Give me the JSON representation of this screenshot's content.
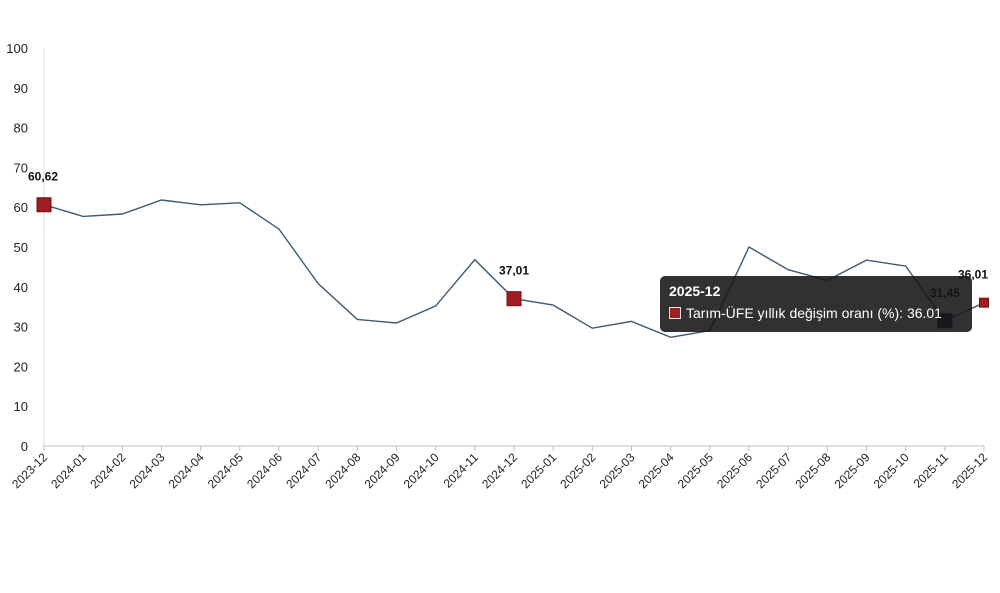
{
  "chart_data": {
    "type": "line",
    "categories": [
      "2023-12",
      "2024-01",
      "2024-02",
      "2024-03",
      "2024-04",
      "2024-05",
      "2024-06",
      "2024-07",
      "2024-08",
      "2024-09",
      "2024-10",
      "2024-11",
      "2024-12",
      "2025-01",
      "2025-02",
      "2025-03",
      "2025-04",
      "2025-05",
      "2025-06",
      "2025-07",
      "2025-08",
      "2025-09",
      "2025-10",
      "2025-11",
      "2025-12"
    ],
    "series": [
      {
        "name": "Tarım-ÜFE yıllık değişim oranı (%)",
        "values": [
          60.62,
          57.7,
          58.3,
          61.8,
          60.6,
          61.1,
          54.5,
          40.8,
          31.8,
          30.9,
          35.2,
          46.8,
          37.01,
          35.4,
          29.6,
          31.3,
          27.3,
          29.0,
          50.0,
          44.3,
          41.6,
          46.7,
          45.2,
          31.45,
          36.01
        ],
        "color": "#3d5a73",
        "marker_color": "#a01d22"
      }
    ],
    "ylim": [
      0,
      100
    ],
    "yticks": [
      "0",
      "10",
      "20",
      "30",
      "40",
      "50",
      "60",
      "70",
      "80",
      "90",
      "100"
    ],
    "annotations": [
      {
        "index": 0,
        "text": "60,62"
      },
      {
        "index": 12,
        "text": "37,01"
      },
      {
        "index": 23,
        "text": "31,45"
      },
      {
        "index": 24,
        "text": "36,01"
      }
    ],
    "highlighted_points": [
      0,
      12,
      24
    ],
    "hovered_point": 23,
    "grid": false
  },
  "tooltip": {
    "title": "2025-12",
    "series_label": "Tarım-ÜFE yıllık değişim oranı (%)",
    "value": "36.01"
  }
}
